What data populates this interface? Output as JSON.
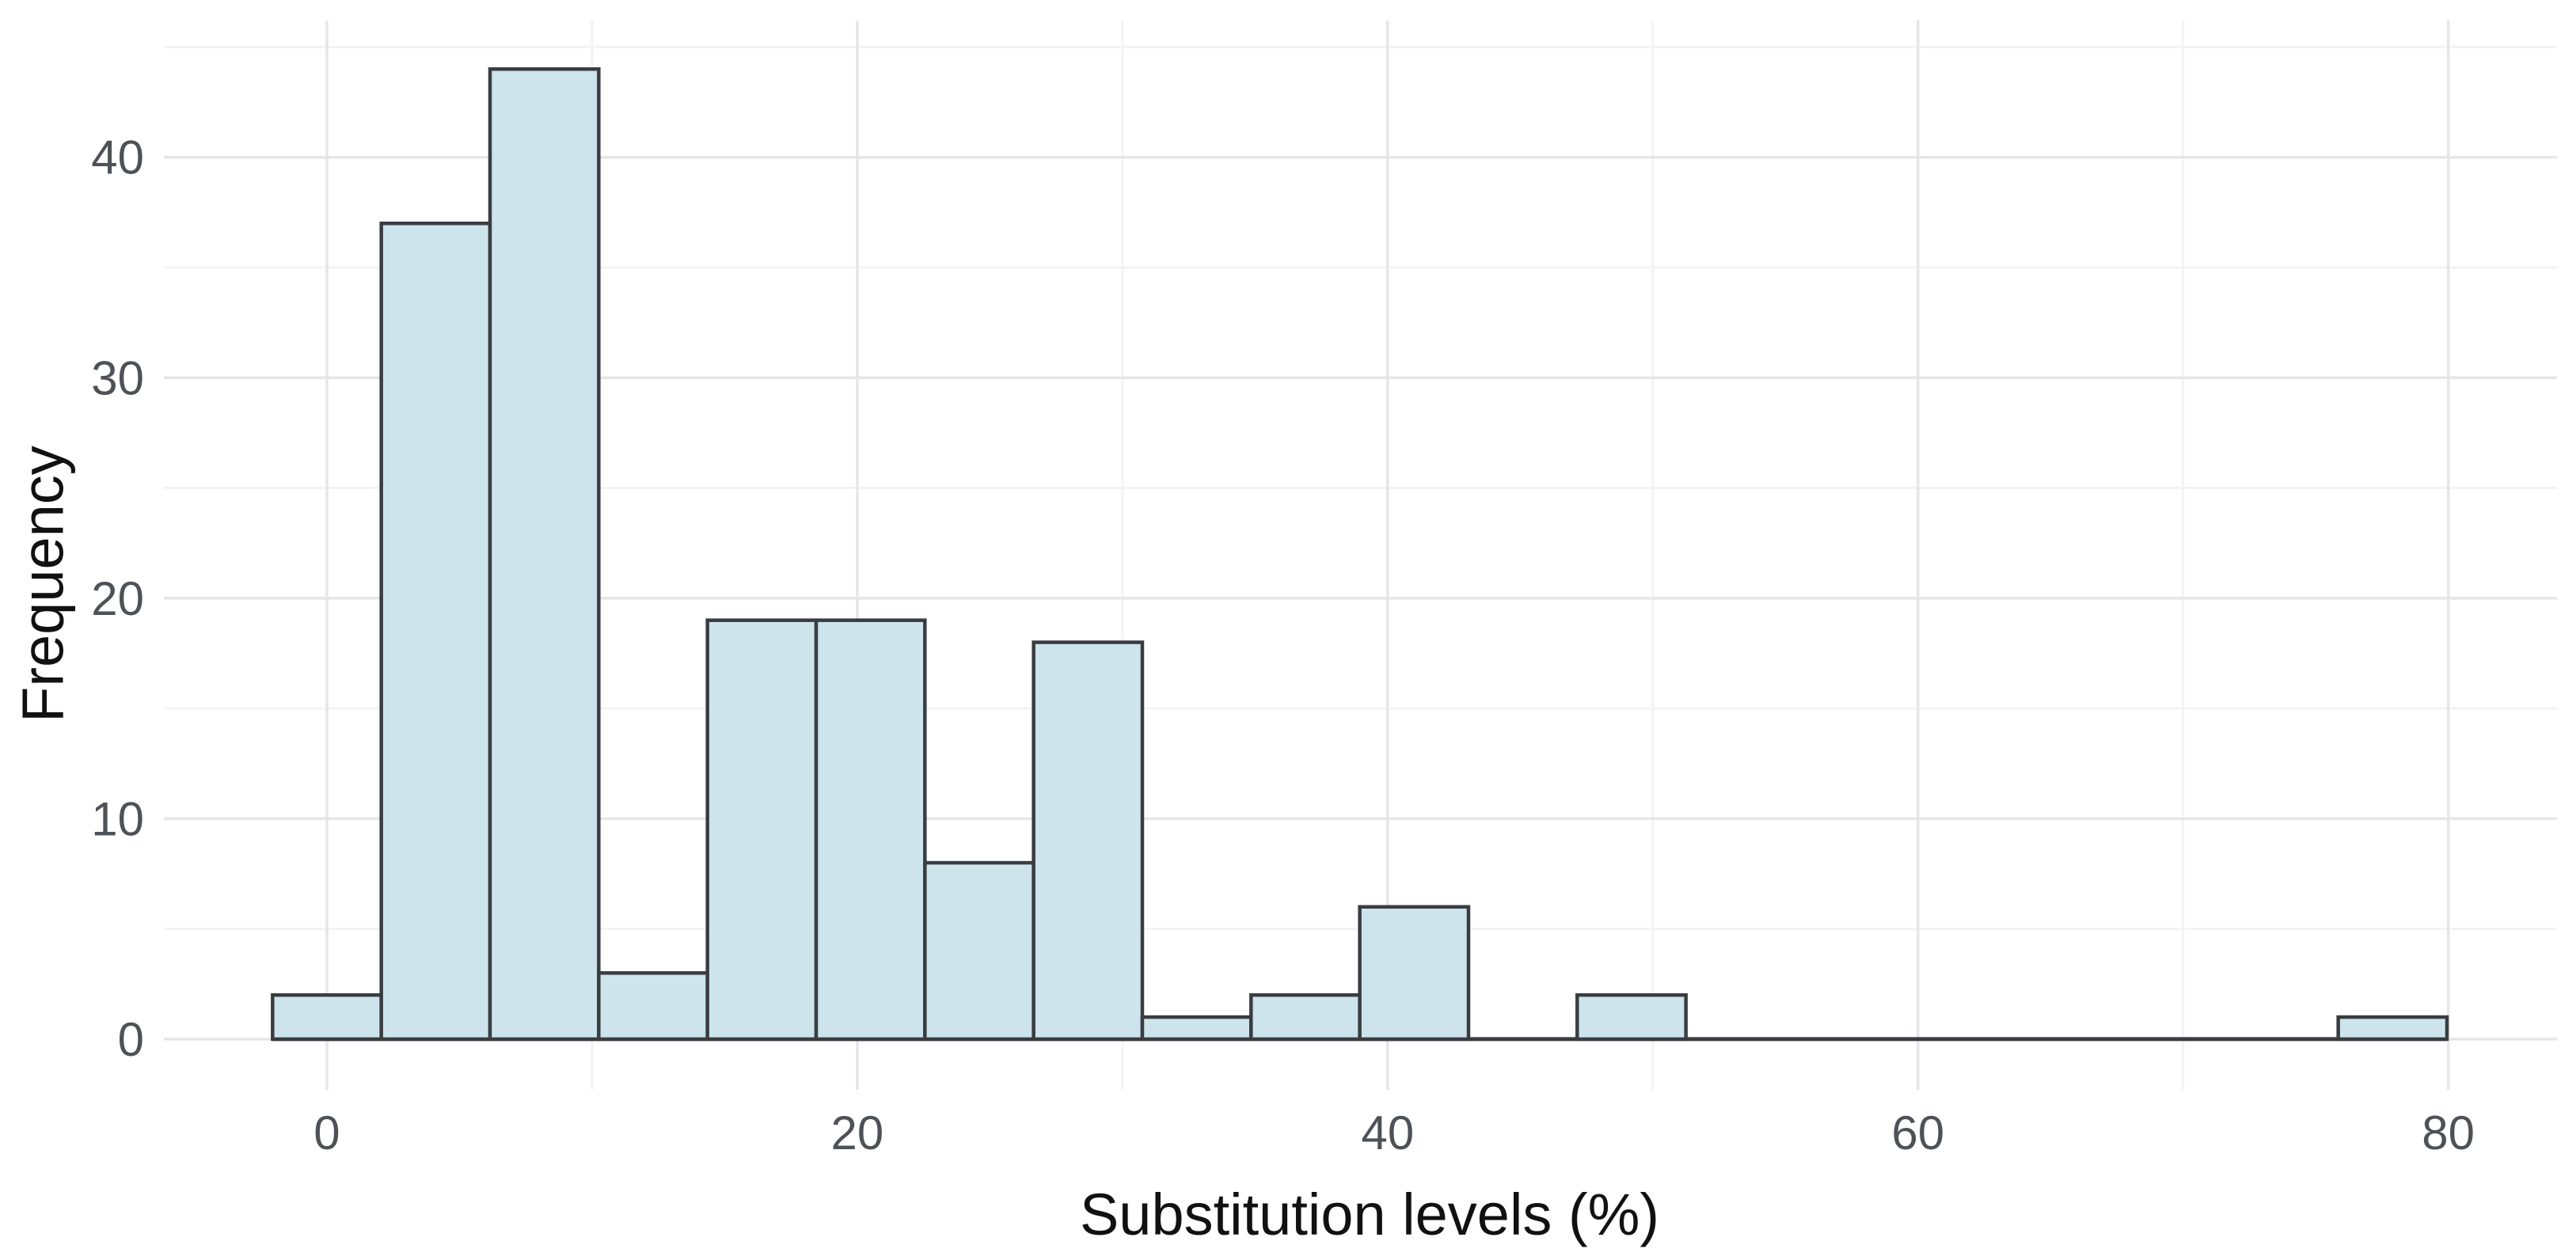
{
  "chart_data": {
    "type": "bar",
    "subtype": "histogram",
    "title": "",
    "xlabel": "Substitution levels (%)",
    "ylabel": "Frequency",
    "bin_width": 4.1,
    "bin_centers": [
      0,
      4.1,
      8.2,
      12.3,
      16.4,
      20.5,
      24.6,
      28.7,
      32.8,
      36.9,
      41.0,
      45.1,
      49.2,
      53.3,
      57.4,
      61.5,
      65.6,
      69.7,
      73.8,
      77.9
    ],
    "counts": [
      2,
      37,
      44,
      3,
      19,
      19,
      8,
      18,
      1,
      2,
      6,
      0,
      2,
      0,
      0,
      0,
      0,
      0,
      0,
      1
    ],
    "total_observations": 162,
    "x_major_ticks": [
      0,
      20,
      40,
      60,
      80
    ],
    "x_tick_labels": [
      "0",
      "20",
      "40",
      "60",
      "80"
    ],
    "x_minor_gridlines": [
      10,
      30,
      50,
      70
    ],
    "y_major_ticks": [
      0,
      10,
      20,
      30,
      40
    ],
    "y_tick_labels": [
      "0",
      "10",
      "20",
      "30",
      "40"
    ],
    "y_minor_gridlines": [
      5,
      15,
      25,
      35,
      45
    ],
    "xlim": [
      -6.15,
      84.1
    ],
    "ylim": [
      -2.3,
      46.2
    ],
    "grid": true,
    "legend": false,
    "colors": {
      "bar_fill": "#cde4ec",
      "bar_stroke": "#393d42",
      "baseline": "#393d42",
      "grid_major": "#e6e6e6",
      "grid_minor": "#f3f3f3",
      "tick_label": "#4e5257",
      "axis_title": "#111111",
      "background": "#ffffff"
    }
  }
}
